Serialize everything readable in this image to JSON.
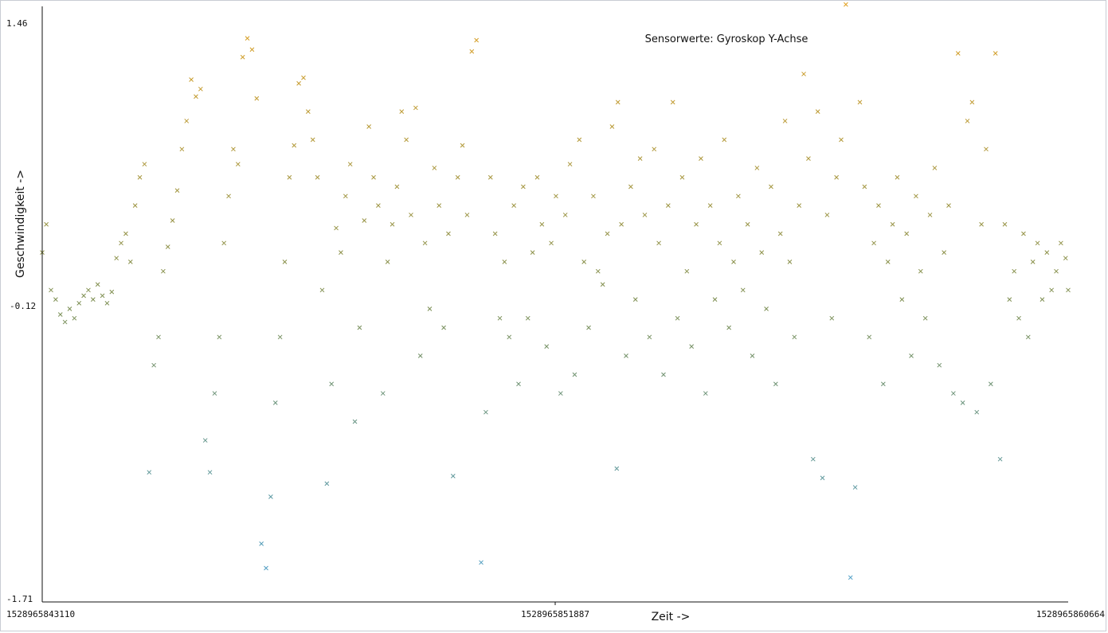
{
  "chart_data": {
    "type": "scatter",
    "title": "Sensorwerte: Gyroskop Y-Achse",
    "xlabel": "Zeit ->",
    "ylabel": "Geschwindigkeit ->",
    "xlim": [
      1528965843110,
      1528965860664
    ],
    "ylim": [
      -1.71,
      1.46
    ],
    "x_ticks": [
      "1528965843110",
      "1528965851887",
      "1528965860664"
    ],
    "y_ticks": [
      "1.46",
      "-0.12",
      "-1.71"
    ],
    "grid": false,
    "legend": "none",
    "marker": "x",
    "color_scale": {
      "low": "#4a9fd0",
      "mid": "#7c8e52",
      "high": "#e0a020"
    },
    "series": [
      {
        "points": [
          [
            1528965843110,
            0.15
          ],
          [
            1528965843180,
            0.3
          ],
          [
            1528965843260,
            -0.05
          ],
          [
            1528965843340,
            -0.1
          ],
          [
            1528965843420,
            -0.18
          ],
          [
            1528965843500,
            -0.22
          ],
          [
            1528965843580,
            -0.15
          ],
          [
            1528965843660,
            -0.2
          ],
          [
            1528965843740,
            -0.12
          ],
          [
            1528965843820,
            -0.08
          ],
          [
            1528965843900,
            -0.05
          ],
          [
            1528965843980,
            -0.1
          ],
          [
            1528965844060,
            -0.02
          ],
          [
            1528965844140,
            -0.08
          ],
          [
            1528965844220,
            -0.12
          ],
          [
            1528965844300,
            -0.06
          ],
          [
            1528965844380,
            0.12
          ],
          [
            1528965844460,
            0.2
          ],
          [
            1528965844540,
            0.25
          ],
          [
            1528965844620,
            0.1
          ],
          [
            1528965844700,
            0.4
          ],
          [
            1528965844780,
            0.55
          ],
          [
            1528965844860,
            0.62
          ],
          [
            1528965844940,
            -1.02
          ],
          [
            1528965845020,
            -0.45
          ],
          [
            1528965845100,
            -0.3
          ],
          [
            1528965845180,
            0.05
          ],
          [
            1528965845260,
            0.18
          ],
          [
            1528965845340,
            0.32
          ],
          [
            1528965845420,
            0.48
          ],
          [
            1528965845500,
            0.7
          ],
          [
            1528965845580,
            0.85
          ],
          [
            1528965845660,
            1.07
          ],
          [
            1528965845740,
            0.98
          ],
          [
            1528965845820,
            1.02
          ],
          [
            1528965845900,
            -0.85
          ],
          [
            1528965845980,
            -1.02
          ],
          [
            1528965846060,
            -0.6
          ],
          [
            1528965846140,
            -0.3
          ],
          [
            1528965846220,
            0.2
          ],
          [
            1528965846300,
            0.45
          ],
          [
            1528965846380,
            0.7
          ],
          [
            1528965846460,
            0.62
          ],
          [
            1528965846540,
            1.19
          ],
          [
            1528965846620,
            1.29
          ],
          [
            1528965846700,
            1.23
          ],
          [
            1528965846780,
            0.97
          ],
          [
            1528965846860,
            -1.4
          ],
          [
            1528965846940,
            -1.53
          ],
          [
            1528965847020,
            -1.15
          ],
          [
            1528965847100,
            -0.65
          ],
          [
            1528965847180,
            -0.3
          ],
          [
            1528965847260,
            0.1
          ],
          [
            1528965847340,
            0.55
          ],
          [
            1528965847420,
            0.72
          ],
          [
            1528965847500,
            1.05
          ],
          [
            1528965847580,
            1.08
          ],
          [
            1528965847660,
            0.9
          ],
          [
            1528965847740,
            0.75
          ],
          [
            1528965847820,
            0.55
          ],
          [
            1528965847900,
            -0.05
          ],
          [
            1528965847980,
            -1.08
          ],
          [
            1528965848060,
            -0.55
          ],
          [
            1528965848140,
            0.28
          ],
          [
            1528965848220,
            0.15
          ],
          [
            1528965848300,
            0.45
          ],
          [
            1528965848380,
            0.62
          ],
          [
            1528965848460,
            -0.75
          ],
          [
            1528965848540,
            -0.25
          ],
          [
            1528965848620,
            0.32
          ],
          [
            1528965848700,
            0.82
          ],
          [
            1528965848780,
            0.55
          ],
          [
            1528965848860,
            0.4
          ],
          [
            1528965848940,
            -0.6
          ],
          [
            1528965849020,
            0.1
          ],
          [
            1528965849100,
            0.3
          ],
          [
            1528965849180,
            0.5
          ],
          [
            1528965849260,
            0.9
          ],
          [
            1528965849340,
            0.75
          ],
          [
            1528965849420,
            0.35
          ],
          [
            1528965849500,
            0.92
          ],
          [
            1528965849580,
            -0.4
          ],
          [
            1528965849660,
            0.2
          ],
          [
            1528965849740,
            -0.15
          ],
          [
            1528965849820,
            0.6
          ],
          [
            1528965849900,
            0.4
          ],
          [
            1528965849980,
            -0.25
          ],
          [
            1528965850060,
            0.25
          ],
          [
            1528965850140,
            -1.04
          ],
          [
            1528965850220,
            0.55
          ],
          [
            1528965850300,
            0.72
          ],
          [
            1528965850380,
            0.35
          ],
          [
            1528965850460,
            1.22
          ],
          [
            1528965850540,
            1.28
          ],
          [
            1528965850620,
            -1.5
          ],
          [
            1528965850700,
            -0.7
          ],
          [
            1528965850780,
            0.55
          ],
          [
            1528965850860,
            0.25
          ],
          [
            1528965850940,
            -0.2
          ],
          [
            1528965851020,
            0.1
          ],
          [
            1528965851100,
            -0.3
          ],
          [
            1528965851180,
            0.4
          ],
          [
            1528965851260,
            -0.55
          ],
          [
            1528965851340,
            0.5
          ],
          [
            1528965851420,
            -0.2
          ],
          [
            1528965851500,
            0.15
          ],
          [
            1528965851580,
            0.55
          ],
          [
            1528965851660,
            0.3
          ],
          [
            1528965851740,
            -0.35
          ],
          [
            1528965851820,
            0.2
          ],
          [
            1528965851900,
            0.45
          ],
          [
            1528965851980,
            -0.6
          ],
          [
            1528965852060,
            0.35
          ],
          [
            1528965852140,
            0.62
          ],
          [
            1528965852220,
            -0.5
          ],
          [
            1528965852300,
            0.75
          ],
          [
            1528965852380,
            0.1
          ],
          [
            1528965852460,
            -0.25
          ],
          [
            1528965852540,
            0.45
          ],
          [
            1528965852620,
            0.05
          ],
          [
            1528965852700,
            -0.02
          ],
          [
            1528965852780,
            0.25
          ],
          [
            1528965852860,
            0.82
          ],
          [
            1528965852940,
            -1.0
          ],
          [
            1528965853020,
            0.3
          ],
          [
            1528965852960,
            0.95
          ],
          [
            1528965853100,
            -0.4
          ],
          [
            1528965853180,
            0.5
          ],
          [
            1528965853260,
            -0.1
          ],
          [
            1528965853340,
            0.65
          ],
          [
            1528965853420,
            0.35
          ],
          [
            1528965853500,
            -0.3
          ],
          [
            1528965853580,
            0.7
          ],
          [
            1528965853660,
            0.2
          ],
          [
            1528965853740,
            -0.5
          ],
          [
            1528965853820,
            0.4
          ],
          [
            1528965853900,
            0.95
          ],
          [
            1528965853980,
            -0.2
          ],
          [
            1528965854060,
            0.55
          ],
          [
            1528965854140,
            0.05
          ],
          [
            1528965854220,
            -0.35
          ],
          [
            1528965854300,
            0.3
          ],
          [
            1528965854380,
            0.65
          ],
          [
            1528965854460,
            -0.6
          ],
          [
            1528965854540,
            0.4
          ],
          [
            1528965854620,
            -0.1
          ],
          [
            1528965854700,
            0.2
          ],
          [
            1528965854780,
            0.75
          ],
          [
            1528965854860,
            -0.25
          ],
          [
            1528965854940,
            0.1
          ],
          [
            1528965855020,
            0.45
          ],
          [
            1528965855100,
            -0.05
          ],
          [
            1528965855180,
            0.3
          ],
          [
            1528965855260,
            -0.4
          ],
          [
            1528965855340,
            0.6
          ],
          [
            1528965855420,
            0.15
          ],
          [
            1528965855500,
            -0.15
          ],
          [
            1528965855580,
            0.5
          ],
          [
            1528965855660,
            -0.55
          ],
          [
            1528965855740,
            0.25
          ],
          [
            1528965855820,
            0.85
          ],
          [
            1528965855900,
            0.1
          ],
          [
            1528965855980,
            -0.3
          ],
          [
            1528965856060,
            0.4
          ],
          [
            1528965856140,
            1.1
          ],
          [
            1528965856220,
            0.65
          ],
          [
            1528965856300,
            -0.95
          ],
          [
            1528965856380,
            0.9
          ],
          [
            1528965856460,
            -1.05
          ],
          [
            1528965856540,
            0.35
          ],
          [
            1528965856620,
            -0.2
          ],
          [
            1528965856700,
            0.55
          ],
          [
            1528965856780,
            0.75
          ],
          [
            1528965856860,
            1.47
          ],
          [
            1528965856940,
            -1.58
          ],
          [
            1528965857020,
            -1.1
          ],
          [
            1528965857100,
            0.95
          ],
          [
            1528965857180,
            0.5
          ],
          [
            1528965857260,
            -0.3
          ],
          [
            1528965857340,
            0.2
          ],
          [
            1528965857420,
            0.4
          ],
          [
            1528965857500,
            -0.55
          ],
          [
            1528965857580,
            0.1
          ],
          [
            1528965857660,
            0.3
          ],
          [
            1528965857740,
            0.55
          ],
          [
            1528965857820,
            -0.1
          ],
          [
            1528965857900,
            0.25
          ],
          [
            1528965857980,
            -0.4
          ],
          [
            1528965858060,
            0.45
          ],
          [
            1528965858140,
            0.05
          ],
          [
            1528965858220,
            -0.2
          ],
          [
            1528965858300,
            0.35
          ],
          [
            1528965858380,
            0.6
          ],
          [
            1528965858460,
            -0.45
          ],
          [
            1528965858540,
            0.15
          ],
          [
            1528965858620,
            0.4
          ],
          [
            1528965858700,
            -0.6
          ],
          [
            1528965858780,
            1.21
          ],
          [
            1528965858860,
            -0.65
          ],
          [
            1528965858940,
            0.85
          ],
          [
            1528965859020,
            0.95
          ],
          [
            1528965859100,
            -0.7
          ],
          [
            1528965859180,
            0.3
          ],
          [
            1528965859260,
            0.7
          ],
          [
            1528965859340,
            -0.55
          ],
          [
            1528965859420,
            1.21
          ],
          [
            1528965859500,
            -0.95
          ],
          [
            1528965859580,
            0.3
          ],
          [
            1528965859660,
            -0.1
          ],
          [
            1528965859740,
            0.05
          ],
          [
            1528965859820,
            -0.2
          ],
          [
            1528965859900,
            0.25
          ],
          [
            1528965859980,
            -0.3
          ],
          [
            1528965860060,
            0.1
          ],
          [
            1528965860140,
            0.2
          ],
          [
            1528965860220,
            -0.1
          ],
          [
            1528965860300,
            0.15
          ],
          [
            1528965860380,
            -0.05
          ],
          [
            1528965860460,
            0.05
          ],
          [
            1528965860540,
            0.2
          ],
          [
            1528965860620,
            0.12
          ],
          [
            1528965860664,
            -0.05
          ]
        ]
      }
    ]
  }
}
